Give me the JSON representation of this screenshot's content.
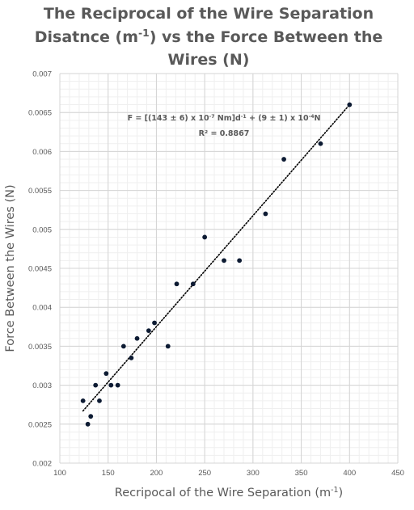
{
  "chart_data": {
    "type": "scatter",
    "title_lines": [
      {
        "parts": [
          {
            "t": "The Reciprocal of the Wire Separation"
          }
        ]
      },
      {
        "parts": [
          {
            "t": "Disatnce (m"
          },
          {
            "t": "-1",
            "sup": true
          },
          {
            "t": ") vs the Force Between the"
          }
        ]
      },
      {
        "parts": [
          {
            "t": "Wires (N)"
          }
        ]
      }
    ],
    "xlabel_parts": [
      {
        "t": "Recripocal of the Wire Separation (m"
      },
      {
        "t": "-1",
        "sup": true
      },
      {
        "t": ")"
      }
    ],
    "ylabel": "Force Between the Wires (N)",
    "xlim": [
      100,
      450
    ],
    "ylim": [
      0.002,
      0.007
    ],
    "x_ticks": [
      100,
      150,
      200,
      250,
      300,
      350,
      400,
      450
    ],
    "y_ticks": [
      0.002,
      0.0025,
      0.003,
      0.0035,
      0.004,
      0.0045,
      0.005,
      0.0055,
      0.006,
      0.0065,
      0.007
    ],
    "grid": true,
    "legend": "none",
    "series": [
      {
        "marker_color": "#0d1b33",
        "points": [
          {
            "x": 124,
            "y": 0.0028
          },
          {
            "x": 129,
            "y": 0.0025
          },
          {
            "x": 132,
            "y": 0.0026
          },
          {
            "x": 137,
            "y": 0.003
          },
          {
            "x": 141,
            "y": 0.0028
          },
          {
            "x": 148,
            "y": 0.00315
          },
          {
            "x": 153,
            "y": 0.003
          },
          {
            "x": 160,
            "y": 0.003
          },
          {
            "x": 166,
            "y": 0.0035
          },
          {
            "x": 174,
            "y": 0.00335
          },
          {
            "x": 180,
            "y": 0.0036
          },
          {
            "x": 192,
            "y": 0.0037
          },
          {
            "x": 198,
            "y": 0.0038
          },
          {
            "x": 212,
            "y": 0.0035
          },
          {
            "x": 221,
            "y": 0.0043
          },
          {
            "x": 238,
            "y": 0.0043
          },
          {
            "x": 250,
            "y": 0.0049
          },
          {
            "x": 270,
            "y": 0.0046
          },
          {
            "x": 286,
            "y": 0.0046
          },
          {
            "x": 313,
            "y": 0.0052
          },
          {
            "x": 332,
            "y": 0.0059
          },
          {
            "x": 370,
            "y": 0.0061
          },
          {
            "x": 400,
            "y": 0.0066
          }
        ]
      }
    ],
    "trendline": {
      "type": "linear",
      "style": "dotted",
      "color": "#000000",
      "x": [
        124,
        400
      ],
      "y": [
        0.00267,
        0.0066
      ]
    },
    "annotations": {
      "equation_parts": [
        {
          "t": "F = [(143 ± 6) x 10"
        },
        {
          "t": "-7",
          "sup": true
        },
        {
          "t": " Nm]d"
        },
        {
          "t": "-1",
          "sup": true
        },
        {
          "t": " + (9 ± 1) x 10"
        },
        {
          "t": "-4",
          "sup": true
        },
        {
          "t": "N"
        }
      ],
      "r_squared": "R² = 0.8867",
      "anchor_x": 270,
      "anchor_y": 0.0064
    }
  }
}
